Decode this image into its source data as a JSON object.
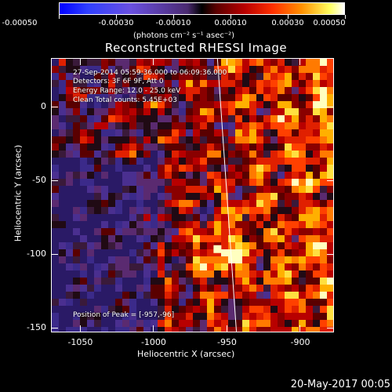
{
  "colorbar": {
    "tick_labels": [
      "-0.00050",
      "-0.00030",
      "-0.00010",
      "0.00010",
      "0.00030",
      "0.00050"
    ],
    "unit_label": "(photons cm⁻² s⁻¹ asec⁻²)",
    "colors": [
      "#0000ff",
      "#000000",
      "#b80000",
      "#ff9000",
      "#ffffff"
    ]
  },
  "chart_data": {
    "type": "heatmap",
    "title": "Reconstructed RHESSI Image",
    "xlabel": "Heliocentric X (arcsec)",
    "ylabel": "Heliocentric Y (arcsec)",
    "xlim": [
      -1070,
      -877
    ],
    "ylim": [
      -153,
      33
    ],
    "x_ticks": [
      -1050,
      -1000,
      -950,
      -900
    ],
    "y_ticks": [
      0,
      -50,
      -100,
      -150
    ],
    "annotations": [
      "27-Sep-2014 05:59:36.000 to 06:09:36.000",
      "Detectors: 3F 6F 9F, Att 0",
      "Energy Range: 12.0 - 25.0 keV",
      "Clean     Total counts: 5.45E+03"
    ],
    "peak_label": "Position of Peak = [-957,-96]",
    "peak": [
      -957,
      -96
    ],
    "limb_line": [
      [
        -957,
        33
      ],
      [
        -944,
        -153
      ]
    ]
  },
  "footer": "20-May-2017 00:05"
}
